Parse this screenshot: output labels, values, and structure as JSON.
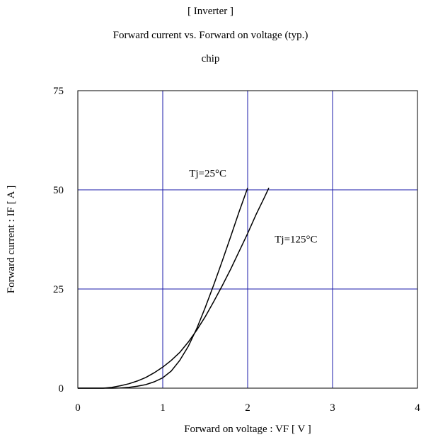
{
  "titles": {
    "line1": "[ Inverter ]",
    "line2": "Forward current  vs.  Forward on voltage  (typ.)",
    "line3": "chip"
  },
  "chart_data": {
    "type": "line",
    "title": "Forward current vs. Forward on voltage (typ.)",
    "xlabel": "Forward on voltage  :  VF  [ V ]",
    "ylabel": "Forward current  :  IF  [ A ]",
    "xlim": [
      0,
      4
    ],
    "ylim": [
      0,
      75
    ],
    "xticks": [
      0,
      1,
      2,
      3,
      4
    ],
    "yticks": [
      0,
      25,
      50,
      75
    ],
    "grid": true,
    "grid_color": "#1a1aa8",
    "series": [
      {
        "name": "Tj=25°C",
        "color": "#000000",
        "x": [
          0.0,
          0.4,
          0.5,
          0.6,
          0.7,
          0.8,
          0.9,
          1.0,
          1.1,
          1.2,
          1.3,
          1.4,
          1.5,
          1.6,
          1.7,
          1.8,
          1.9,
          2.0
        ],
        "y": [
          0.0,
          0.0,
          0.05,
          0.2,
          0.5,
          0.9,
          1.6,
          2.6,
          4.3,
          7.0,
          10.5,
          15.0,
          20.3,
          26.0,
          32.0,
          38.2,
          44.5,
          50.5
        ]
      },
      {
        "name": "Tj=125°C",
        "color": "#000000",
        "x": [
          0.0,
          0.3,
          0.4,
          0.5,
          0.6,
          0.7,
          0.8,
          0.9,
          1.0,
          1.1,
          1.2,
          1.3,
          1.4,
          1.5,
          1.6,
          1.7,
          1.8,
          1.9,
          2.0,
          2.1,
          2.2,
          2.25
        ],
        "y": [
          0.0,
          0.0,
          0.2,
          0.6,
          1.1,
          1.8,
          2.7,
          3.9,
          5.3,
          7.0,
          9.0,
          11.6,
          14.6,
          18.0,
          21.8,
          25.8,
          30.0,
          34.5,
          39.0,
          43.8,
          48.2,
          50.5
        ]
      }
    ],
    "annotations": [
      {
        "text": "Tj=25°C",
        "x": 1.53,
        "y": 53.3
      },
      {
        "text": "Tj=125°C",
        "x": 2.57,
        "y": 36.7
      }
    ]
  }
}
